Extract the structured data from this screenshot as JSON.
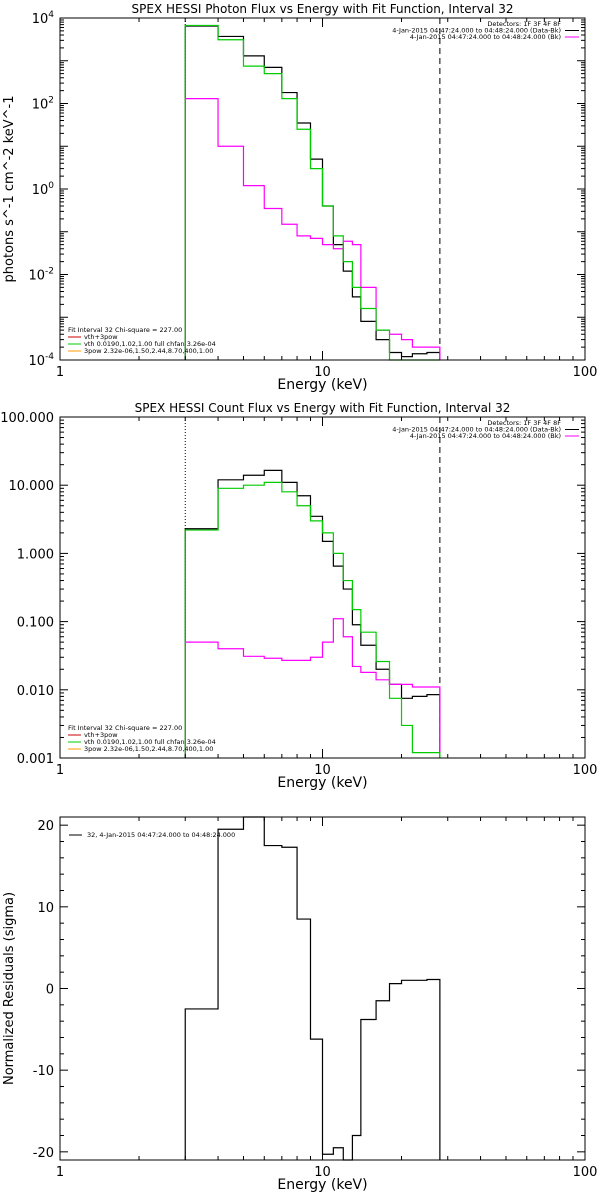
{
  "chart_data": [
    {
      "type": "line",
      "title": "SPEX HESSI Photon Flux vs Energy with Fit Function, Interval 32",
      "xlabel": "Energy (keV)",
      "ylabel": "photons s^-1 cm^-2 keV^-1",
      "xscale": "log",
      "yscale": "log",
      "xlim": [
        1,
        100
      ],
      "ylim": [
        0.0001,
        10000
      ],
      "x_ticks": [
        "1",
        "10",
        "100"
      ],
      "y_ticks": [
        {
          "base": "10",
          "exp": "4"
        },
        {
          "base": "10",
          "exp": "2"
        },
        {
          "base": "10",
          "exp": "0"
        },
        {
          "base": "10",
          "exp": "-2"
        },
        {
          "base": "10",
          "exp": "-4"
        }
      ],
      "legend_top": [
        "Detectors: 1F 3F 4F 8F",
        "4-Jan-2015 04:47:24.000 to 04:48:24.000 (Data-Bk)",
        "4-Jan-2015 04:47:24.000 to 04:48:24.000 (Bk)"
      ],
      "legend_bottom": [
        "Fit Interval 32   Chi-square = 227.00",
        "vth+3pow",
        "vth 0.0190,1.02,1.00  full chfan 3.26e-04",
        "3pow 2.32e-06,1.50,2.44,8.70,400,1.00"
      ],
      "vlines": [
        {
          "x": 3.0,
          "style": "dotted"
        },
        {
          "x": 28.0,
          "style": "dashed"
        }
      ],
      "bin_edges": [
        3.0,
        4.0,
        5.0,
        6.0,
        7.0,
        8.0,
        9.0,
        10.0,
        11.0,
        12.0,
        13.0,
        14.0,
        16.0,
        18.0,
        20.0,
        22.0,
        25.0,
        28.0
      ],
      "series": [
        {
          "name": "Data-Bk",
          "color": "#000000",
          "values": [
            6500,
            3700,
            1300,
            700,
            180,
            35,
            5,
            0.4,
            0.05,
            0.012,
            0.003,
            0.0008,
            0.0003,
            0.00015,
            0.00012,
            0.00014,
            0.00015
          ]
        },
        {
          "name": "Bk",
          "color": "#ff00ff",
          "values": [
            130,
            10,
            1.2,
            0.35,
            0.15,
            0.08,
            0.07,
            0.05,
            0.04,
            0.06,
            0.05,
            0.005,
            0.0005,
            0.0004,
            0.0003,
            0.0002,
            0.0002
          ]
        },
        {
          "name": "vth+3pow",
          "color": "#00cc00",
          "values": [
            6700,
            3100,
            750,
            500,
            130,
            25,
            3,
            0.4,
            0.08,
            0.02,
            0.005,
            0.0016,
            0.0005,
            0.0001,
            0.0001,
            0.0001,
            0.0001
          ]
        }
      ]
    },
    {
      "type": "line",
      "title": "SPEX HESSI Count Flux vs Energy with Fit Function, Interval 32",
      "xlabel": "Energy (keV)",
      "ylabel": "",
      "xscale": "log",
      "yscale": "log",
      "xlim": [
        1,
        100
      ],
      "ylim": [
        0.001,
        100
      ],
      "x_ticks": [
        "1",
        "10",
        "100"
      ],
      "y_ticks": [
        "100.000",
        "10.000",
        "1.000",
        "0.100",
        "0.010",
        "0.001"
      ],
      "legend_top": [
        "Detectors: 1F 3F 4F 8F",
        "4-Jan-2015 04:47:24.000 to 04:48:24.000 (Data-Bk)",
        "4-Jan-2015 04:47:24.000 to 04:48:24.000 (Bk)"
      ],
      "legend_bottom": [
        "Fit Interval 32   Chi-square = 227.00",
        "vth+3pow",
        "vth 0.0190,1.02,1.00  full chfan 3.26e-04",
        "3pow 2.32e-06,1.50,2.44,8.70,400,1.00"
      ],
      "vlines": [
        {
          "x": 3.0,
          "style": "dotted"
        },
        {
          "x": 28.0,
          "style": "dashed"
        }
      ],
      "bin_edges": [
        3.0,
        4.0,
        5.0,
        6.0,
        7.0,
        8.0,
        9.0,
        10.0,
        11.0,
        12.0,
        13.0,
        14.0,
        16.0,
        18.0,
        20.0,
        22.0,
        25.0,
        28.0
      ],
      "series": [
        {
          "name": "Data-Bk",
          "color": "#000000",
          "values": [
            2.3,
            12,
            14,
            16.5,
            11,
            7,
            3.5,
            1.5,
            0.65,
            0.3,
            0.09,
            0.045,
            0.02,
            0.012,
            0.0075,
            0.008,
            0.0085
          ]
        },
        {
          "name": "Bk",
          "color": "#ff00ff",
          "values": [
            0.05,
            0.04,
            0.031,
            0.029,
            0.027,
            0.027,
            0.03,
            0.05,
            0.11,
            0.06,
            0.022,
            0.018,
            0.014,
            0.012,
            0.012,
            0.011,
            0.011
          ]
        },
        {
          "name": "vth+3pow",
          "color": "#00cc00",
          "values": [
            2.2,
            9,
            10,
            11,
            8,
            5,
            3,
            2,
            1,
            0.4,
            0.15,
            0.07,
            0.026,
            0.0075,
            0.003,
            0.0012,
            0.0012
          ]
        }
      ]
    },
    {
      "type": "line",
      "title": "",
      "xlabel": "Energy (keV)",
      "ylabel": "Normalized Residuals (sigma)",
      "xscale": "log",
      "yscale": "linear",
      "xlim": [
        1,
        100
      ],
      "ylim": [
        -21,
        21
      ],
      "x_ticks": [
        "1",
        "10",
        "100"
      ],
      "y_ticks": [
        "20",
        "10",
        "0",
        "-10",
        "-20"
      ],
      "legend": [
        "32,  4-Jan-2015 04:47:24.000 to 04:48:24.000"
      ],
      "bin_edges": [
        3.0,
        4.0,
        5.0,
        6.0,
        7.0,
        8.0,
        9.0,
        10.0,
        11.0,
        12.0,
        13.0,
        14.0,
        16.0,
        18.0,
        20.0,
        22.0,
        25.0,
        28.0
      ],
      "series": [
        {
          "name": "32",
          "color": "#000000",
          "values": [
            -2.5,
            19.5,
            21,
            17.5,
            17.3,
            8.5,
            -6.2,
            -20.3,
            -19.5,
            -21,
            -18,
            -3.8,
            -1.5,
            0.6,
            1.0,
            1.0,
            1.1
          ]
        }
      ]
    }
  ]
}
